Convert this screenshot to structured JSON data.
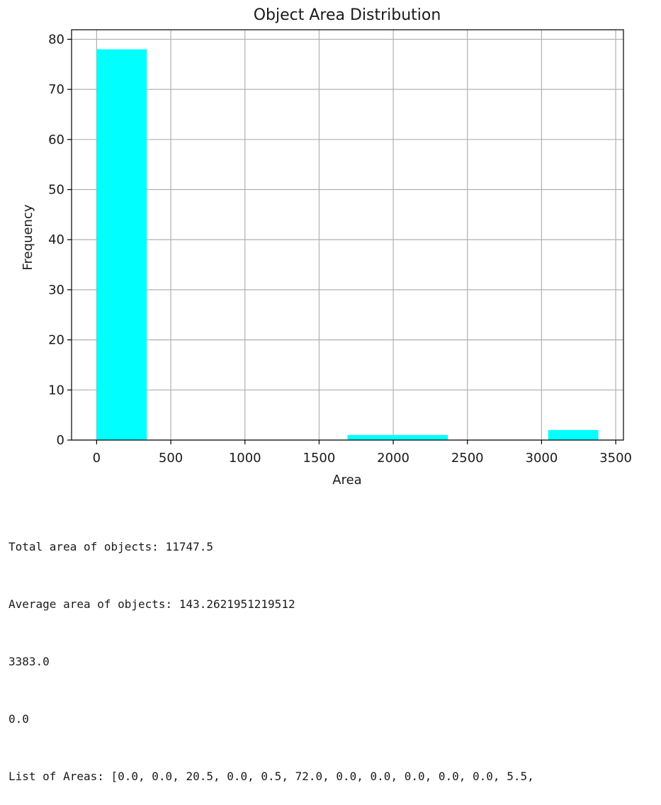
{
  "chart_data": {
    "type": "bar",
    "title": "Object Area Distribution",
    "xlabel": "Area",
    "ylabel": "Frequency",
    "xlim": [
      -169.15,
      3552.15
    ],
    "ylim": [
      0,
      81.9
    ],
    "xticks": [
      0,
      500,
      1000,
      1500,
      2000,
      2500,
      3000,
      3500
    ],
    "yticks": [
      0,
      10,
      20,
      30,
      40,
      50,
      60,
      70,
      80
    ],
    "grid": true,
    "bar_color": "#00ffff",
    "bins": [
      {
        "start": 0,
        "end": 338.3,
        "count": 78
      },
      {
        "start": 338.3,
        "end": 676.6,
        "count": 0
      },
      {
        "start": 676.6,
        "end": 1014.9,
        "count": 0
      },
      {
        "start": 1014.9,
        "end": 1353.2,
        "count": 0
      },
      {
        "start": 1353.2,
        "end": 1691.5,
        "count": 0
      },
      {
        "start": 1691.5,
        "end": 2029.8,
        "count": 1
      },
      {
        "start": 2029.8,
        "end": 2368.1,
        "count": 1
      },
      {
        "start": 2368.1,
        "end": 2706.4,
        "count": 0
      },
      {
        "start": 2706.4,
        "end": 3044.7,
        "count": 0
      },
      {
        "start": 3044.7,
        "end": 3383.0,
        "count": 2
      }
    ]
  },
  "output": {
    "lines": [
      "Total area of objects: 11747.5",
      "Average area of objects: 143.2621951219512",
      "3383.0",
      "0.0",
      "List of Areas: [0.0, 0.0, 20.5, 0.0, 0.5, 72.0, 0.0, 0.0, 0.0, 0.0, 0.0, 5.5,"
    ]
  }
}
